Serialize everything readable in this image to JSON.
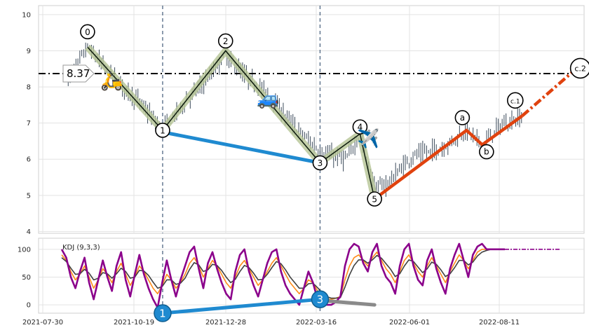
{
  "chart_data": [
    {
      "type": "candlestick",
      "panel": "price",
      "x_ticks": [
        "2021-07-30",
        "2021-10-19",
        "2021-12-28",
        "2022-03-16",
        "2022-06-01",
        "2022-08-11"
      ],
      "ylim": [
        3.95,
        10.25
      ],
      "y_ticks": [
        "4",
        "5",
        "6",
        "7",
        "8",
        "9",
        "10"
      ],
      "grid": true,
      "price_path": [
        {
          "date": "2021-08-20",
          "value": 8.2
        },
        {
          "date": "2021-09-05",
          "value": 9.1
        },
        {
          "date": "2021-09-25",
          "value": 8.3
        },
        {
          "date": "2021-10-20",
          "value": 7.5
        },
        {
          "date": "2021-11-06",
          "value": 6.8
        },
        {
          "date": "2021-11-25",
          "value": 7.6
        },
        {
          "date": "2021-12-15",
          "value": 8.3
        },
        {
          "date": "2021-12-28",
          "value": 8.9
        },
        {
          "date": "2022-01-10",
          "value": 8.4
        },
        {
          "date": "2022-02-01",
          "value": 7.8
        },
        {
          "date": "2022-02-20",
          "value": 7.0
        },
        {
          "date": "2022-03-16",
          "value": 6.2
        },
        {
          "date": "2022-03-25",
          "value": 6.1
        },
        {
          "date": "2022-04-07",
          "value": 6.0
        },
        {
          "date": "2022-04-18",
          "value": 6.7
        },
        {
          "date": "2022-04-30",
          "value": 5.2
        },
        {
          "date": "2022-05-10",
          "value": 5.3
        },
        {
          "date": "2022-06-01",
          "value": 6.1
        },
        {
          "date": "2022-06-25",
          "value": 6.3
        },
        {
          "date": "2022-07-15",
          "value": 6.8
        },
        {
          "date": "2022-07-28",
          "value": 6.4
        },
        {
          "date": "2022-08-11",
          "value": 6.9
        },
        {
          "date": "2022-08-25",
          "value": 7.1
        },
        {
          "date": "2022-08-30",
          "value": 7.2
        }
      ],
      "elliott_waves": [
        {
          "label": "0",
          "date": "2021-09-05",
          "value": 9.1
        },
        {
          "label": "1",
          "date": "2021-11-06",
          "value": 6.8
        },
        {
          "label": "2",
          "date": "2021-12-28",
          "value": 9.0
        },
        {
          "label": "3",
          "date": "2022-03-16",
          "value": 5.9
        },
        {
          "label": "4",
          "date": "2022-04-18",
          "value": 6.7
        },
        {
          "label": "5",
          "date": "2022-04-30",
          "value": 4.9
        }
      ],
      "correction_waves": [
        {
          "label": "5",
          "date": "2022-04-30",
          "value": 4.9
        },
        {
          "label": "a",
          "date": "2022-07-15",
          "value": 6.8
        },
        {
          "label": "b",
          "date": "2022-07-28",
          "value": 6.4
        },
        {
          "label": "c.1",
          "date": "2022-08-30",
          "value": 7.2
        },
        {
          "label": "c.2",
          "date": "2022-10-10",
          "value": 8.4
        }
      ],
      "divergence_line": [
        {
          "date": "2021-11-06",
          "value": 6.75
        },
        {
          "date": "2022-03-16",
          "value": 5.9
        }
      ],
      "horizontal_level": {
        "value": 8.37,
        "label": "8.37"
      },
      "vertical_markers": [
        "2021-11-06",
        "2022-03-16"
      ],
      "icons": [
        {
          "name": "scooter-icon",
          "glyph": "🛵",
          "date": "2021-09-25",
          "value": 8.2
        },
        {
          "name": "car-icon",
          "glyph": "🚙",
          "date": "2022-02-01",
          "value": 7.7
        },
        {
          "name": "airplane-icon",
          "glyph": "✈️",
          "date": "2022-04-25",
          "value": 6.6
        }
      ],
      "colors": {
        "candles": "#3b4a5a",
        "wave_band": "#b5c495",
        "wave_line": "#0d1a0d",
        "divergence": "#1f8ad0",
        "correction": "#e0420e",
        "level": "#000000",
        "marker": "#4f6682"
      }
    },
    {
      "type": "line",
      "panel": "indicator",
      "title": "KDJ (9,3,3)",
      "ylim": [
        -15,
        120
      ],
      "y_ticks": [
        "0",
        "50",
        "100"
      ],
      "grid": true,
      "series": [
        {
          "key": "K",
          "color": "#ff8c1a",
          "values": [
            90,
            80,
            60,
            45,
            55,
            70,
            50,
            30,
            45,
            65,
            55,
            40,
            60,
            75,
            55,
            35,
            50,
            70,
            60,
            45,
            30,
            20,
            35,
            55,
            45,
            30,
            40,
            55,
            75,
            85,
            70,
            50,
            65,
            80,
            70,
            55,
            40,
            30,
            50,
            70,
            80,
            65,
            50,
            35,
            45,
            60,
            75,
            85,
            70,
            55,
            40,
            30,
            20,
            30,
            45,
            40,
            25,
            15,
            10,
            10,
            12,
            15,
            45,
            70,
            85,
            90,
            80,
            70,
            85,
            95,
            80,
            65,
            55,
            40,
            60,
            80,
            90,
            75,
            60,
            50,
            70,
            85,
            70,
            55,
            40,
            60,
            75,
            90,
            80,
            65,
            80,
            95,
            100,
            100,
            100,
            100,
            100,
            100
          ]
        },
        {
          "key": "D",
          "color": "#404040",
          "values": [
            85,
            78,
            66,
            55,
            56,
            64,
            57,
            45,
            48,
            58,
            56,
            48,
            56,
            66,
            60,
            48,
            50,
            62,
            61,
            53,
            41,
            30,
            33,
            45,
            45,
            37,
            39,
            48,
            64,
            76,
            72,
            60,
            63,
            73,
            71,
            62,
            50,
            40,
            46,
            60,
            71,
            67,
            57,
            45,
            46,
            55,
            67,
            78,
            74,
            63,
            50,
            40,
            30,
            30,
            38,
            39,
            31,
            22,
            15,
            12,
            12,
            13,
            32,
            54,
            71,
            81,
            81,
            75,
            81,
            89,
            84,
            74,
            64,
            51,
            56,
            70,
            81,
            78,
            68,
            58,
            65,
            77,
            73,
            63,
            51,
            56,
            67,
            80,
            80,
            72,
            77,
            88,
            95,
            98,
            100,
            100,
            100,
            100
          ]
        },
        {
          "key": "J",
          "color": "#8b008b",
          "values": [
            100,
            85,
            50,
            30,
            60,
            85,
            40,
            10,
            45,
            80,
            50,
            25,
            70,
            95,
            45,
            15,
            55,
            90,
            55,
            30,
            10,
            -5,
            40,
            80,
            45,
            15,
            45,
            70,
            95,
            105,
            65,
            30,
            75,
            95,
            65,
            40,
            20,
            10,
            60,
            90,
            100,
            60,
            35,
            15,
            45,
            75,
            95,
            100,
            60,
            35,
            20,
            10,
            0,
            30,
            60,
            40,
            10,
            5,
            0,
            0,
            5,
            15,
            70,
            100,
            110,
            105,
            75,
            60,
            95,
            110,
            70,
            50,
            40,
            20,
            70,
            100,
            110,
            70,
            45,
            35,
            80,
            100,
            65,
            40,
            20,
            65,
            90,
            110,
            80,
            50,
            90,
            105,
            110,
            100,
            100,
            100,
            100,
            100
          ]
        }
      ],
      "markers": [
        {
          "label": "1",
          "date": "2021-11-06",
          "value": -15
        },
        {
          "label": "3",
          "date": "2022-03-16",
          "value": 10
        }
      ],
      "divergence_line": [
        {
          "date": "2021-11-06",
          "value": -15
        },
        {
          "date": "2022-03-16",
          "value": 10
        }
      ],
      "gray_segment": [
        {
          "date": "2022-03-16",
          "value": 8
        },
        {
          "date": "2022-04-30",
          "value": 0
        }
      ],
      "x_ticks": [
        "2021-07-30",
        "2021-10-19",
        "2021-12-28",
        "2022-03-16",
        "2022-06-01",
        "2022-08-11"
      ]
    }
  ]
}
